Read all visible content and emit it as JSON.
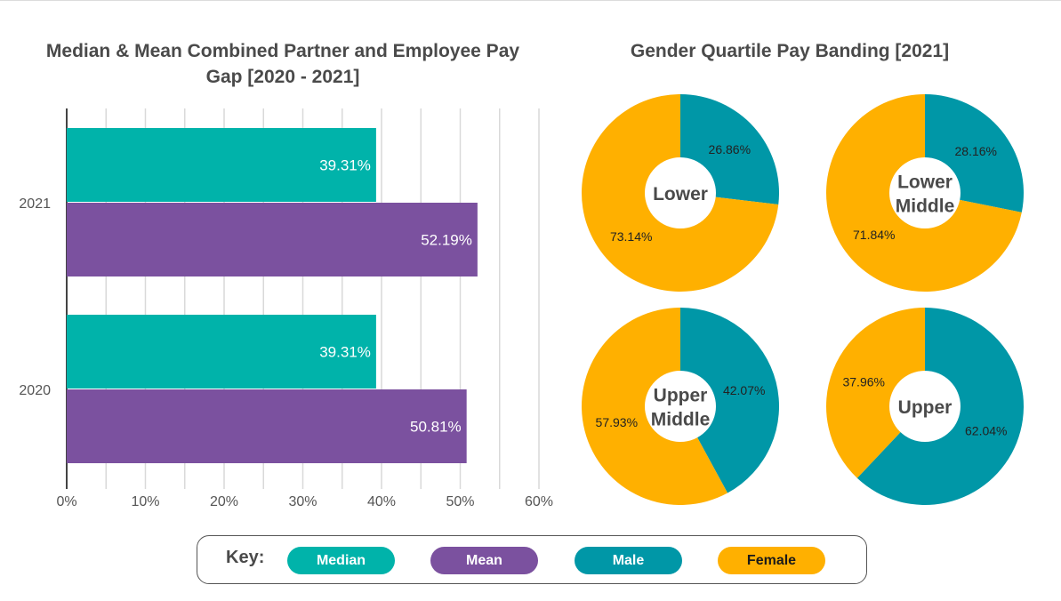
{
  "chart_data": [
    {
      "type": "bar",
      "orientation": "horizontal",
      "title": "Median & Mean Combined Partner and Employee Pay Gap [2020 - 2021]",
      "categories": [
        "2021",
        "2020"
      ],
      "series": [
        {
          "name": "Median",
          "color": "#00b3aa",
          "values": [
            39.31,
            39.31
          ],
          "labels": [
            "39.31%",
            "39.31%"
          ]
        },
        {
          "name": "Mean",
          "color": "#7b519f",
          "values": [
            52.19,
            50.81
          ],
          "labels": [
            "52.19%",
            "50.81%"
          ]
        }
      ],
      "xlim": [
        0,
        60
      ],
      "xticks": [
        "0%",
        "10%",
        "20%",
        "30%",
        "40%",
        "50%",
        "60%"
      ],
      "grid": true
    },
    {
      "type": "pie",
      "title": "Gender Quartile Pay Banding [2021]",
      "variant": "donut",
      "charts": [
        {
          "name": "Lower",
          "label_lines": [
            "Lower"
          ],
          "male": 26.86,
          "female": 73.14,
          "male_label": "26.86%",
          "female_label": "73.14%"
        },
        {
          "name": "Lower Middle",
          "label_lines": [
            "Lower",
            "Middle"
          ],
          "male": 28.16,
          "female": 71.84,
          "male_label": "28.16%",
          "female_label": "71.84%"
        },
        {
          "name": "Upper Middle",
          "label_lines": [
            "Upper",
            "Middle"
          ],
          "male": 42.07,
          "female": 57.93,
          "male_label": "42.07%",
          "female_label": "57.93%"
        },
        {
          "name": "Upper",
          "label_lines": [
            "Upper"
          ],
          "male": 62.04,
          "female": 37.96,
          "male_label": "62.04%",
          "female_label": "37.96%"
        }
      ],
      "male_color": "#0097a7",
      "female_color": "#ffb000"
    }
  ],
  "key": {
    "title": "Key:",
    "items": [
      {
        "label": "Median",
        "color": "#00b3aa",
        "text_color": "#ffffff"
      },
      {
        "label": "Mean",
        "color": "#7b519f",
        "text_color": "#ffffff"
      },
      {
        "label": "Male",
        "color": "#0097a7",
        "text_color": "#ffffff"
      },
      {
        "label": "Female",
        "color": "#ffb000",
        "text_color": "#1a1a1a"
      }
    ]
  }
}
